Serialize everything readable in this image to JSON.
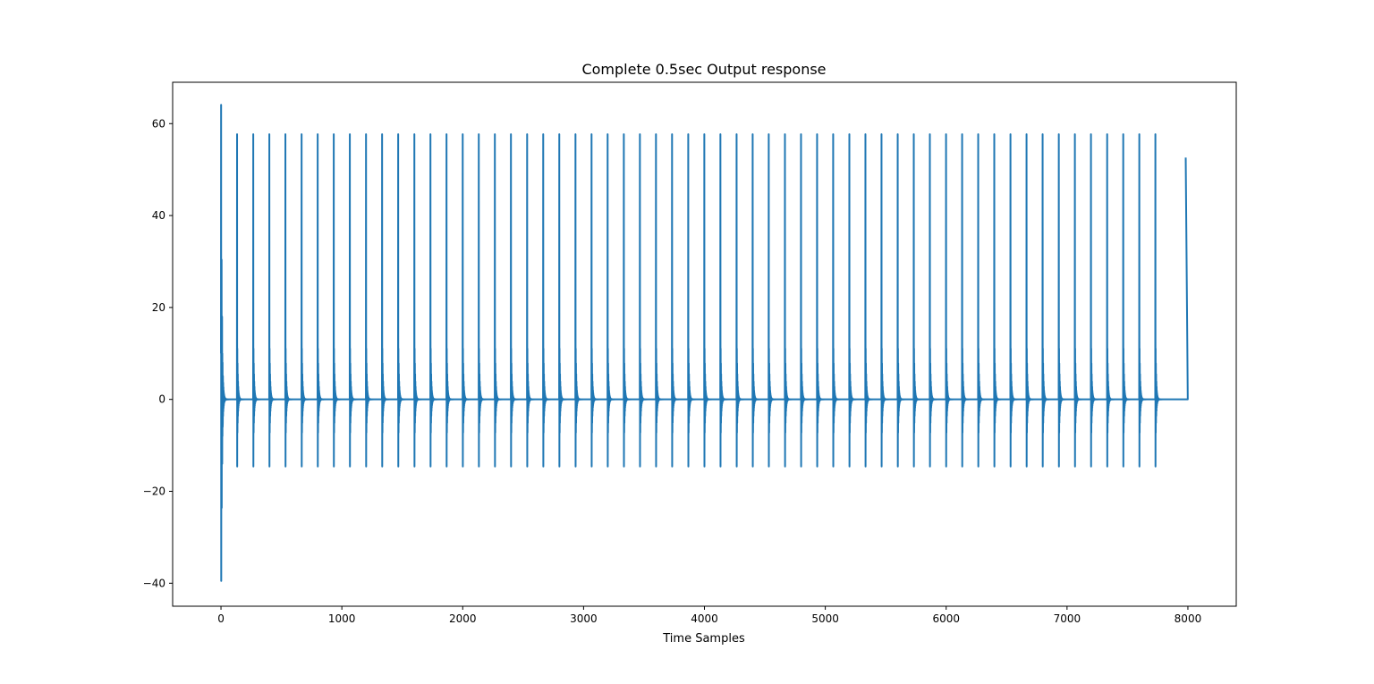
{
  "chart_data": {
    "type": "line",
    "title": "Complete 0.5sec Output response",
    "xlabel": "Time Samples",
    "ylabel": "",
    "xlim": [
      -400,
      8400
    ],
    "ylim": [
      -45,
      69
    ],
    "x_ticks": [
      0,
      1000,
      2000,
      3000,
      4000,
      5000,
      6000,
      7000,
      8000
    ],
    "x_tick_labels": [
      "0",
      "1000",
      "2000",
      "3000",
      "4000",
      "5000",
      "6000",
      "7000",
      "8000"
    ],
    "y_ticks": [
      -40,
      -20,
      0,
      20,
      40,
      60
    ],
    "y_tick_labels": [
      "−40",
      "−20",
      "0",
      "20",
      "40",
      "60"
    ],
    "grid": false,
    "legend": "none",
    "color": "#1f77b4",
    "series": [
      {
        "name": "",
        "description_values": {
          "samples": 8000,
          "period_samples": 133.3,
          "pulse_count": 58,
          "pulse_peak": 57.7,
          "pulse_trough": -14.6,
          "initial_peak": 64.1,
          "initial_trough": -39.5,
          "initial_secondary_peaks": [
            30.4,
            18.0
          ],
          "initial_secondary_troughs": [
            -23.6,
            -14.0
          ],
          "ringing_first_peak": 11.1,
          "ringing_first_trough": -8.6,
          "ringing_decay_per_sample": 0.84,
          "final_value": 52.6
        }
      }
    ]
  }
}
